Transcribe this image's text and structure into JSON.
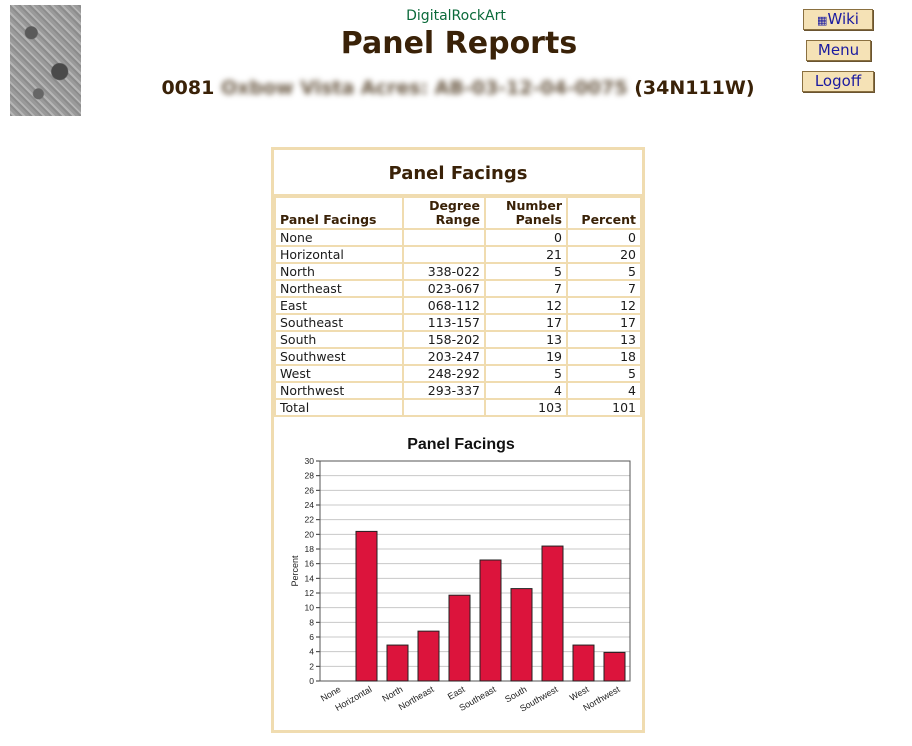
{
  "header": {
    "brand": "DigitalRockArt",
    "title": "Panel Reports",
    "site_number": "0081",
    "site_name_redacted": "Oxbow Vista Acres: AB-03-12-04-0075",
    "site_code": "(34N111W)"
  },
  "nav": {
    "wiki_label": "Wiki",
    "menu_label": "Menu",
    "logoff_label": "Logoff"
  },
  "report": {
    "title": "Panel Facings",
    "columns": [
      "Panel Facings",
      "Degree Range",
      "Number Panels",
      "Percent"
    ],
    "column_lines": [
      [
        "Panel Facings"
      ],
      [
        "Degree",
        "Range"
      ],
      [
        "Number",
        "Panels"
      ],
      [
        "Percent"
      ]
    ],
    "rows": [
      {
        "facing": "None",
        "range": "",
        "panels": "0",
        "percent": "0"
      },
      {
        "facing": "Horizontal",
        "range": "",
        "panels": "21",
        "percent": "20"
      },
      {
        "facing": "North",
        "range": "338-022",
        "panels": "5",
        "percent": "5"
      },
      {
        "facing": "Northeast",
        "range": "023-067",
        "panels": "7",
        "percent": "7"
      },
      {
        "facing": "East",
        "range": "068-112",
        "panels": "12",
        "percent": "12"
      },
      {
        "facing": "Southeast",
        "range": "113-157",
        "panels": "17",
        "percent": "17"
      },
      {
        "facing": "South",
        "range": "158-202",
        "panels": "13",
        "percent": "13"
      },
      {
        "facing": "Southwest",
        "range": "203-247",
        "panels": "19",
        "percent": "18"
      },
      {
        "facing": "West",
        "range": "248-292",
        "panels": "5",
        "percent": "5"
      },
      {
        "facing": "Northwest",
        "range": "293-337",
        "panels": "4",
        "percent": "4"
      }
    ],
    "total": {
      "facing": "Total",
      "range": "",
      "panels": "103",
      "percent": "101"
    }
  },
  "chart_data": {
    "type": "bar",
    "title": "Panel Facings",
    "xlabel": "",
    "ylabel": "Percent",
    "categories": [
      "None",
      "Horizontal",
      "North",
      "Northeast",
      "East",
      "Southeast",
      "South",
      "Southwest",
      "West",
      "Northwest"
    ],
    "values": [
      0,
      20.4,
      4.9,
      6.8,
      11.7,
      16.5,
      12.6,
      18.4,
      4.9,
      3.9
    ],
    "ylim": [
      0,
      30
    ],
    "yticks": [
      0,
      2,
      4,
      6,
      8,
      10,
      12,
      14,
      16,
      18,
      20,
      22,
      24,
      26,
      28,
      30
    ],
    "grid": true,
    "bar_color": "#dc143c"
  }
}
